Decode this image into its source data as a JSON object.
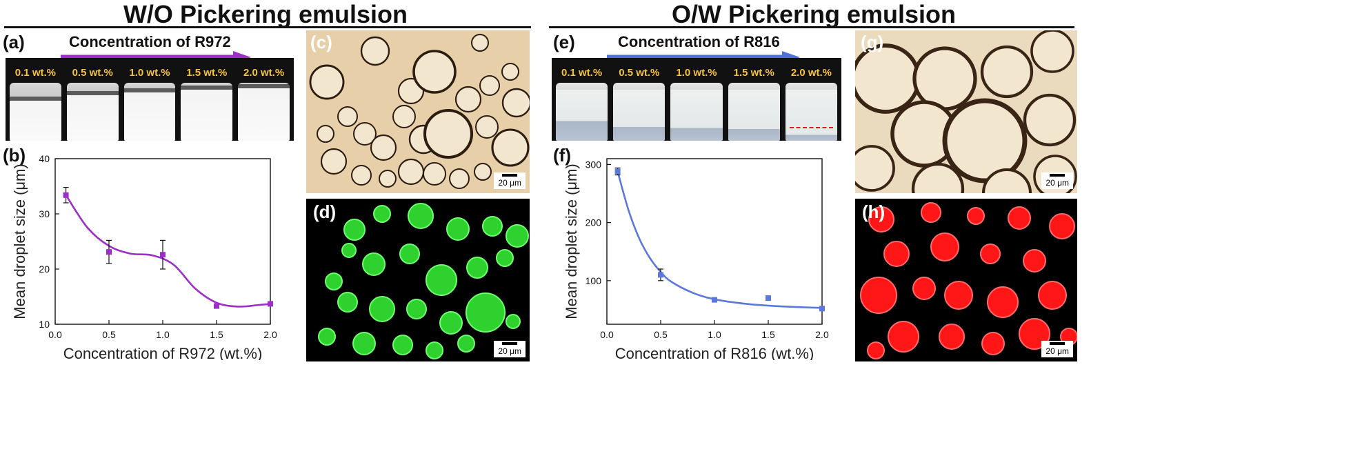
{
  "headers": {
    "left_title": "W/O Pickering emulsion",
    "right_title": "O/W Pickering emulsion"
  },
  "panels": {
    "a": "(a)",
    "b": "(b)",
    "c": "(c)",
    "d": "(d)",
    "e": "(e)",
    "f": "(f)",
    "g": "(g)",
    "h": "(h)"
  },
  "left_arrow": {
    "text": "Concentration of R972",
    "color": "#9b2fc7"
  },
  "right_arrow": {
    "text": "Concentration of R816",
    "color": "#4f6fd9"
  },
  "left_vials": [
    "0.1 wt.%",
    "0.5 wt.%",
    "1.0 wt.%",
    "1.5 wt.%",
    "2.0 wt.%"
  ],
  "right_vials": [
    "0.1 wt.%",
    "0.5 wt.%",
    "1.0 wt.%",
    "1.5 wt.%",
    "2.0 wt.%"
  ],
  "scale_bar_text": "20 μm",
  "colors": {
    "purple": "#9b2fc7",
    "blue": "#5b78dc",
    "label_yellow": "#f5c242",
    "bright_field": "#e8d2b0",
    "fluor_green": "#3ee83e",
    "fluor_red": "#ff1a1a",
    "dashed_red": "#d91c1c"
  },
  "chart_data": [
    {
      "type": "scatter",
      "title": "",
      "xlabel": "Concentration of R972 (wt.%)",
      "ylabel": "Mean droplet size (μm)",
      "x": [
        0.1,
        0.5,
        1.0,
        1.5,
        2.0
      ],
      "y": [
        33.4,
        23.1,
        22.6,
        13.3,
        13.7
      ],
      "yerr": [
        1.4,
        2.1,
        2.6,
        0.3,
        0.2
      ],
      "fit_curve": {
        "x": [
          0.1,
          0.3,
          0.5,
          0.7,
          0.9,
          1.1,
          1.3,
          1.5,
          1.7,
          1.9,
          2.0
        ],
        "y": [
          33.4,
          27.5,
          24.2,
          22.8,
          22.5,
          20.8,
          16.5,
          13.9,
          13.2,
          13.5,
          13.7
        ]
      },
      "xlim": [
        0,
        2.0
      ],
      "ylim": [
        10,
        40
      ],
      "xticks": [
        "0.0",
        "0.5",
        "1.0",
        "1.5",
        "2.0"
      ],
      "yticks": [
        "10",
        "20",
        "30",
        "40"
      ],
      "color": "#9b2fc7"
    },
    {
      "type": "scatter",
      "title": "",
      "xlabel": "Concentration of R816 (wt.%)",
      "ylabel": "Mean droplet size (μm)",
      "x": [
        0.1,
        0.5,
        1.0,
        1.5,
        2.0
      ],
      "y": [
        288,
        110,
        67,
        70,
        52
      ],
      "yerr": [
        6,
        10,
        3,
        0,
        3
      ],
      "fit_curve": {
        "x": [
          0.1,
          0.2,
          0.3,
          0.4,
          0.5,
          0.6,
          0.8,
          1.0,
          1.3,
          1.6,
          2.0
        ],
        "y": [
          288,
          222,
          173,
          139,
          115,
          98,
          79,
          68,
          60,
          56,
          53
        ]
      },
      "xlim": [
        0,
        2.0
      ],
      "ylim": [
        25,
        310
      ],
      "xticks": [
        "0.0",
        "0.5",
        "1.0",
        "1.5",
        "2.0"
      ],
      "yticks": [
        "100",
        "200",
        "300"
      ],
      "color": "#5b78dc"
    }
  ]
}
